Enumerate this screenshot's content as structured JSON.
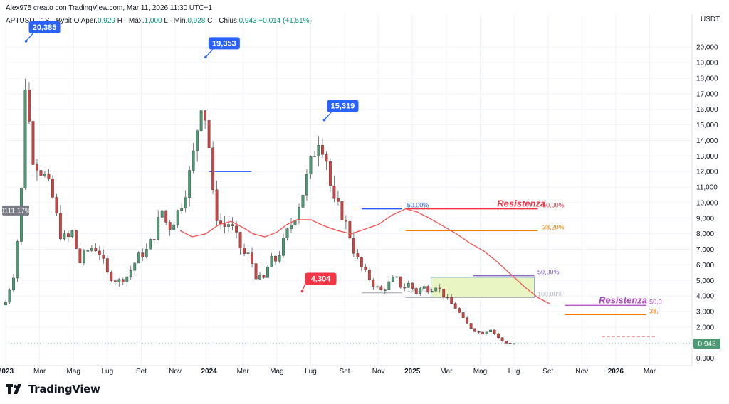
{
  "header": {
    "attribution": "Alex975 creato con TradingView.com, Mar 11, 2026 11:30 UTC+1",
    "symbol": "APTUSD",
    "ohlc_label": "· 1S · Bybit  O",
    "open_label": "Aper.",
    "open": "0,929",
    "high_label": "H · Max.",
    "high": "1,000",
    "low_label": "L · Min.",
    "low": "0,928",
    "close_label": "C · Chius.",
    "close": "0,943",
    "change": "+0,014 (+1,51%)"
  },
  "footer": {
    "brand": "TradingView"
  },
  "chart_data": {
    "type": "candlestick",
    "currency": "USDT",
    "y_axis_ticks": [
      "0,000",
      "1,000",
      "2,000",
      "3,000",
      "4,000",
      "5,000",
      "6,000",
      "7,000",
      "8,000",
      "9,000",
      "10,000",
      "11,000",
      "12,000",
      "13,000",
      "14,000",
      "15,000",
      "16,000",
      "17,000",
      "18,000",
      "19,000",
      "20,000"
    ],
    "y_axis_values": [
      0,
      1,
      2,
      3,
      4,
      5,
      6,
      7,
      8,
      9,
      10,
      11,
      12,
      13,
      14,
      15,
      16,
      17,
      18,
      19,
      20
    ],
    "ylim": [
      -0.2,
      21.2
    ],
    "x_axis_ticks": [
      {
        "label": "2023",
        "year": true
      },
      {
        "label": "Mar",
        "year": false
      },
      {
        "label": "Mag",
        "year": false
      },
      {
        "label": "Lug",
        "year": false
      },
      {
        "label": "Set",
        "year": false
      },
      {
        "label": "Nov",
        "year": false
      },
      {
        "label": "2024",
        "year": true
      },
      {
        "label": "Mar",
        "year": false
      },
      {
        "label": "Mag",
        "year": false
      },
      {
        "label": "Lug",
        "year": false
      },
      {
        "label": "Set",
        "year": false
      },
      {
        "label": "Nov",
        "year": false
      },
      {
        "label": "2025",
        "year": true
      },
      {
        "label": "Mar",
        "year": false
      },
      {
        "label": "Mag",
        "year": false
      },
      {
        "label": "Lug",
        "year": false
      },
      {
        "label": "Set",
        "year": false
      },
      {
        "label": "Nov",
        "year": false
      },
      {
        "label": "2026",
        "year": true
      },
      {
        "label": "Mar",
        "year": false
      }
    ],
    "x_tick_month_index": [
      0,
      2,
      4,
      6,
      8,
      10,
      12,
      14,
      16,
      18,
      20,
      22,
      24,
      26,
      28,
      30,
      32,
      34,
      36,
      38
    ],
    "months_total": 40.5,
    "anchors_month_close": [
      [
        0,
        3.6
      ],
      [
        0.5,
        5.5
      ],
      [
        0.9,
        9.8
      ],
      [
        1.1,
        18.3
      ],
      [
        1.3,
        16.0
      ],
      [
        1.6,
        13.0
      ],
      [
        2.0,
        12.2
      ],
      [
        2.4,
        11.5
      ],
      [
        2.8,
        10.2
      ],
      [
        3.2,
        8.0
      ],
      [
        3.6,
        7.6
      ],
      [
        4.0,
        8.2
      ],
      [
        4.3,
        6.0
      ],
      [
        4.7,
        6.8
      ],
      [
        5.2,
        7.2
      ],
      [
        5.6,
        6.7
      ],
      [
        6.0,
        5.4
      ],
      [
        6.6,
        4.9
      ],
      [
        7.2,
        5.3
      ],
      [
        7.8,
        6.5
      ],
      [
        8.3,
        6.9
      ],
      [
        8.8,
        8.0
      ],
      [
        9.2,
        9.6
      ],
      [
        9.6,
        8.3
      ],
      [
        10.0,
        9.0
      ],
      [
        10.5,
        10.3
      ],
      [
        11.0,
        12.5
      ],
      [
        11.6,
        17.0
      ],
      [
        12.0,
        13.6
      ],
      [
        12.3,
        9.5
      ],
      [
        12.8,
        8.4
      ],
      [
        13.2,
        8.7
      ],
      [
        13.6,
        7.8
      ],
      [
        14.0,
        6.7
      ],
      [
        14.4,
        6.6
      ],
      [
        14.8,
        5.2
      ],
      [
        15.2,
        5.0
      ],
      [
        15.6,
        6.3
      ],
      [
        16.0,
        6.3
      ],
      [
        16.5,
        7.8
      ],
      [
        17.0,
        9.0
      ],
      [
        17.5,
        10.5
      ],
      [
        18.0,
        12.5
      ],
      [
        18.5,
        14.3
      ],
      [
        18.9,
        13.0
      ],
      [
        19.3,
        10.0
      ],
      [
        19.7,
        9.6
      ],
      [
        20.2,
        8.3
      ],
      [
        20.6,
        6.7
      ],
      [
        21.0,
        5.8
      ],
      [
        21.4,
        5.2
      ],
      [
        21.8,
        4.6
      ],
      [
        22.2,
        4.3
      ],
      [
        22.6,
        4.8
      ],
      [
        23.0,
        5.2
      ],
      [
        23.4,
        4.5
      ],
      [
        23.8,
        4.8
      ],
      [
        24.2,
        4.2
      ],
      [
        24.6,
        4.6
      ],
      [
        25.0,
        4.4
      ],
      [
        25.4,
        4.7
      ],
      [
        25.8,
        4.1
      ],
      [
        26.2,
        3.6
      ],
      [
        26.6,
        3.2
      ],
      [
        27.0,
        2.5
      ],
      [
        27.4,
        2.0
      ],
      [
        27.8,
        1.7
      ],
      [
        28.2,
        1.6
      ],
      [
        28.6,
        1.9
      ],
      [
        29.0,
        1.4
      ],
      [
        29.4,
        1.0
      ],
      [
        29.8,
        0.95
      ],
      [
        30.1,
        0.943
      ]
    ],
    "moving_average": [
      [
        10.3,
        8.2
      ],
      [
        11.0,
        7.8
      ],
      [
        11.8,
        8.0
      ],
      [
        12.6,
        8.6
      ],
      [
        13.3,
        8.8
      ],
      [
        14.0,
        8.4
      ],
      [
        14.6,
        8.0
      ],
      [
        15.3,
        7.8
      ],
      [
        16.0,
        8.1
      ],
      [
        16.6,
        8.6
      ],
      [
        17.2,
        8.9
      ],
      [
        18.0,
        8.9
      ],
      [
        18.8,
        8.5
      ],
      [
        19.6,
        8.2
      ],
      [
        20.4,
        8.0
      ],
      [
        21.2,
        8.3
      ],
      [
        22.0,
        8.6
      ],
      [
        22.8,
        9.2
      ],
      [
        23.6,
        9.6
      ],
      [
        24.3,
        9.4
      ],
      [
        25.0,
        9.0
      ],
      [
        25.8,
        8.5
      ],
      [
        26.6,
        8.0
      ],
      [
        27.4,
        7.4
      ],
      [
        28.2,
        6.9
      ],
      [
        29.0,
        6.2
      ],
      [
        29.8,
        5.4
      ],
      [
        30.6,
        4.6
      ],
      [
        31.4,
        3.9
      ],
      [
        32.1,
        3.5
      ]
    ],
    "callouts": [
      {
        "label": "20,385",
        "value": 20.385,
        "color": "#2962ff"
      },
      {
        "label": "19,353",
        "value": 19.353,
        "color": "#2962ff"
      },
      {
        "label": "15,319",
        "value": 15.319,
        "color": "#2962ff"
      },
      {
        "label": "4,304",
        "value": 4.304,
        "color": "#f23645"
      }
    ],
    "fib_levels": [
      {
        "label": "50,00%",
        "value": 9.6,
        "color": "#2962ff"
      },
      {
        "label": "100,00%",
        "value": 4.2,
        "color": "#b2b5be"
      },
      {
        "label": "50,00%",
        "value": 9.6,
        "color": "#f23645"
      },
      {
        "label": "38,20%",
        "value": 8.2,
        "color": "#f57c00"
      },
      {
        "label": "50,00%",
        "value": 5.3,
        "color": "#7e57c2"
      },
      {
        "label": "100,00%",
        "value": 3.9,
        "color": "#b2b5be"
      },
      {
        "label": "50,0",
        "value": 3.4,
        "color": "#ab47bc"
      },
      {
        "label": "38,",
        "value": 2.8,
        "color": "#f57c00"
      }
    ],
    "resistance_labels": [
      {
        "label": "Resistenza",
        "value": 9.6,
        "color": "#f23645"
      },
      {
        "label": "Resistenza",
        "value": 3.4,
        "color": "#ab47bc"
      }
    ],
    "left_price_tag": {
      "label": "0111,17%",
      "value": 9.5
    },
    "current_price": {
      "label": "0,943",
      "value": 0.943
    }
  }
}
